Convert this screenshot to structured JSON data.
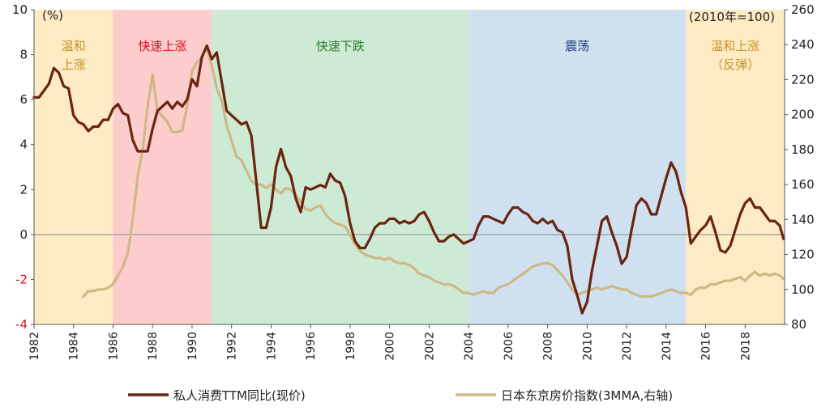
{
  "chart_data": {
    "type": "line",
    "left_unit": "(%)",
    "right_unit": "(2010年=100)",
    "x_range": [
      1982,
      2020
    ],
    "x_ticks": [
      1982,
      1984,
      1986,
      1988,
      1990,
      1992,
      1994,
      1996,
      1998,
      2000,
      2002,
      2004,
      2006,
      2008,
      2010,
      2012,
      2014,
      2016,
      2018
    ],
    "left_ylim": [
      -4,
      10
    ],
    "left_ticks": [
      -4,
      -2,
      0,
      2,
      4,
      6,
      8,
      10
    ],
    "right_ylim": [
      80,
      260
    ],
    "right_ticks": [
      80,
      100,
      120,
      140,
      160,
      180,
      200,
      220,
      240,
      260
    ],
    "regions": [
      {
        "label": "温和上涨",
        "lines": [
          "温和",
          "上涨"
        ],
        "start": 1982,
        "end": 1986,
        "fill": "#fdebc4",
        "text_color": "#c8922a"
      },
      {
        "label": "快速上涨",
        "lines": [
          "快速上涨"
        ],
        "start": 1986,
        "end": 1991,
        "fill": "#fdcccc",
        "text_color": "#d7141e"
      },
      {
        "label": "快速下跌",
        "lines": [
          "快速下跌"
        ],
        "start": 1991,
        "end": 2004,
        "fill": "#cdebd4",
        "text_color": "#2e7d32"
      },
      {
        "label": "震荡",
        "lines": [
          "震荡"
        ],
        "start": 2004,
        "end": 2015,
        "fill": "#cfe1f1",
        "text_color": "#1f3a7a"
      },
      {
        "label": "温和上涨（反弹）",
        "lines": [
          "温和上涨",
          "（反弹）"
        ],
        "start": 2015,
        "end": 2020,
        "fill": "#fdebc4",
        "text_color": "#c8922a"
      }
    ],
    "series": [
      {
        "name": "私人消费TTM同比(现价)",
        "axis": "left",
        "color": "#6b2410",
        "x": [
          1982.0,
          1982.25,
          1982.5,
          1982.75,
          1983.0,
          1983.25,
          1983.5,
          1983.75,
          1984.0,
          1984.25,
          1984.5,
          1984.75,
          1985.0,
          1985.25,
          1985.5,
          1985.75,
          1986.0,
          1986.25,
          1986.5,
          1986.75,
          1987.0,
          1987.25,
          1987.5,
          1987.75,
          1988.0,
          1988.25,
          1988.5,
          1988.75,
          1989.0,
          1989.25,
          1989.5,
          1989.75,
          1990.0,
          1990.25,
          1990.5,
          1990.75,
          1991.0,
          1991.25,
          1991.5,
          1991.75,
          1992.0,
          1992.25,
          1992.5,
          1992.75,
          1993.0,
          1993.25,
          1993.5,
          1993.75,
          1994.0,
          1994.25,
          1994.5,
          1994.75,
          1995.0,
          1995.25,
          1995.5,
          1995.75,
          1996.0,
          1996.25,
          1996.5,
          1996.75,
          1997.0,
          1997.25,
          1997.5,
          1997.75,
          1998.0,
          1998.25,
          1998.5,
          1998.75,
          1999.0,
          1999.25,
          1999.5,
          1999.75,
          2000.0,
          2000.25,
          2000.5,
          2000.75,
          2001.0,
          2001.25,
          2001.5,
          2001.75,
          2002.0,
          2002.25,
          2002.5,
          2002.75,
          2003.0,
          2003.25,
          2003.5,
          2003.75,
          2004.0,
          2004.25,
          2004.5,
          2004.75,
          2005.0,
          2005.25,
          2005.5,
          2005.75,
          2006.0,
          2006.25,
          2006.5,
          2006.75,
          2007.0,
          2007.25,
          2007.5,
          2007.75,
          2008.0,
          2008.25,
          2008.5,
          2008.75,
          2009.0,
          2009.25,
          2009.5,
          2009.75,
          2010.0,
          2010.25,
          2010.5,
          2010.75,
          2011.0,
          2011.25,
          2011.5,
          2011.75,
          2012.0,
          2012.25,
          2012.5,
          2012.75,
          2013.0,
          2013.25,
          2013.5,
          2013.75,
          2014.0,
          2014.25,
          2014.5,
          2014.75,
          2015.0,
          2015.25,
          2015.5,
          2015.75,
          2016.0,
          2016.25,
          2016.5,
          2016.75,
          2017.0,
          2017.25,
          2017.5,
          2017.75,
          2018.0,
          2018.25,
          2018.5,
          2018.75,
          2019.0,
          2019.25,
          2019.5,
          2019.75,
          2019.95
        ],
        "values": [
          6.1,
          6.1,
          6.4,
          6.7,
          7.4,
          7.2,
          6.6,
          6.5,
          5.3,
          5.0,
          4.9,
          4.6,
          4.8,
          4.8,
          5.1,
          5.1,
          5.6,
          5.8,
          5.4,
          5.3,
          4.2,
          3.7,
          3.7,
          3.7,
          4.7,
          5.5,
          5.7,
          5.9,
          5.6,
          5.9,
          5.7,
          6.0,
          6.9,
          6.6,
          7.9,
          8.4,
          7.8,
          8.1,
          6.8,
          5.5,
          5.3,
          5.1,
          4.9,
          5.0,
          4.4,
          2.4,
          0.3,
          0.3,
          1.2,
          3.0,
          3.8,
          3.0,
          2.6,
          1.6,
          1.0,
          2.1,
          2.0,
          2.1,
          2.2,
          2.1,
          2.7,
          2.4,
          2.3,
          1.7,
          0.5,
          -0.3,
          -0.6,
          -0.6,
          -0.2,
          0.3,
          0.5,
          0.5,
          0.7,
          0.7,
          0.5,
          0.6,
          0.5,
          0.6,
          0.9,
          1.0,
          0.6,
          0.1,
          -0.3,
          -0.3,
          -0.1,
          0.0,
          -0.2,
          -0.4,
          -0.3,
          -0.2,
          0.4,
          0.8,
          0.8,
          0.7,
          0.6,
          0.5,
          0.9,
          1.2,
          1.2,
          1.0,
          0.9,
          0.6,
          0.5,
          0.7,
          0.5,
          0.6,
          0.2,
          0.1,
          -0.5,
          -2.0,
          -2.7,
          -3.5,
          -3.0,
          -1.6,
          -0.5,
          0.6,
          0.8,
          0.1,
          -0.5,
          -1.3,
          -1.0,
          0.2,
          1.3,
          1.6,
          1.4,
          0.9,
          0.9,
          1.7,
          2.5,
          3.2,
          2.8,
          1.9,
          1.2,
          -0.4,
          -0.1,
          0.2,
          0.4,
          0.8,
          0.1,
          -0.7,
          -0.8,
          -0.5,
          0.2,
          0.9,
          1.4,
          1.6,
          1.2,
          1.2,
          0.9,
          0.6,
          0.6,
          0.4,
          -0.2
        ]
      },
      {
        "name": "日本东京房价指数(3MMA,右轴)",
        "axis": "right",
        "color": "#cfb887",
        "x": [
          1984.5,
          1984.75,
          1985.0,
          1985.25,
          1985.5,
          1985.75,
          1986.0,
          1986.25,
          1986.5,
          1986.75,
          1987.0,
          1987.25,
          1987.5,
          1987.75,
          1988.0,
          1988.25,
          1988.5,
          1988.75,
          1989.0,
          1989.25,
          1989.5,
          1989.75,
          1990.0,
          1990.25,
          1990.5,
          1990.75,
          1991.0,
          1991.25,
          1991.5,
          1991.75,
          1992.0,
          1992.25,
          1992.5,
          1992.75,
          1993.0,
          1993.25,
          1993.5,
          1993.75,
          1994.0,
          1994.25,
          1994.5,
          1994.75,
          1995.0,
          1995.25,
          1995.5,
          1995.75,
          1996.0,
          1996.25,
          1996.5,
          1996.75,
          1997.0,
          1997.25,
          1997.5,
          1997.75,
          1998.0,
          1998.25,
          1998.5,
          1998.75,
          1999.0,
          1999.25,
          1999.5,
          1999.75,
          2000.0,
          2000.25,
          2000.5,
          2000.75,
          2001.0,
          2001.25,
          2001.5,
          2001.75,
          2002.0,
          2002.25,
          2002.5,
          2002.75,
          2003.0,
          2003.25,
          2003.5,
          2003.75,
          2004.0,
          2004.25,
          2004.5,
          2004.75,
          2005.0,
          2005.25,
          2005.5,
          2005.75,
          2006.0,
          2006.25,
          2006.5,
          2006.75,
          2007.0,
          2007.25,
          2007.5,
          2007.75,
          2008.0,
          2008.25,
          2008.5,
          2008.75,
          2009.0,
          2009.25,
          2009.5,
          2009.75,
          2010.0,
          2010.25,
          2010.5,
          2010.75,
          2011.0,
          2011.25,
          2011.5,
          2011.75,
          2012.0,
          2012.25,
          2012.5,
          2012.75,
          2013.0,
          2013.25,
          2013.5,
          2013.75,
          2014.0,
          2014.25,
          2014.5,
          2014.75,
          2015.0,
          2015.25,
          2015.5,
          2015.75,
          2016.0,
          2016.25,
          2016.5,
          2016.75,
          2017.0,
          2017.25,
          2017.5,
          2017.75,
          2018.0,
          2018.25,
          2018.5,
          2018.75,
          2019.0,
          2019.25,
          2019.5,
          2019.75,
          2019.95
        ],
        "values": [
          96,
          99,
          99,
          100,
          100,
          101,
          103,
          108,
          113,
          121,
          140,
          165,
          180,
          205,
          223,
          202,
          199,
          196,
          190,
          190,
          191,
          205,
          225,
          230,
          233,
          238,
          228,
          215,
          208,
          194,
          185,
          176,
          174,
          168,
          162,
          160,
          160,
          158,
          160,
          157,
          155,
          158,
          157,
          154,
          150,
          146,
          145,
          147,
          148,
          143,
          140,
          138,
          137,
          136,
          131,
          126,
          122,
          120,
          119,
          118,
          118,
          117,
          118,
          116,
          115,
          115,
          114,
          112,
          109,
          108,
          107,
          105,
          104,
          103,
          103,
          102,
          100,
          98,
          98,
          97,
          98,
          99,
          98,
          98,
          101,
          102,
          103,
          105,
          107,
          109,
          111,
          113,
          114,
          115,
          115,
          114,
          111,
          108,
          104,
          100,
          97,
          98,
          99,
          100,
          101,
          100,
          101,
          102,
          101,
          100,
          100,
          98,
          97,
          96,
          96,
          96,
          97,
          98,
          99,
          100,
          99,
          98,
          98,
          97,
          100,
          101,
          101,
          103,
          103,
          104,
          105,
          105,
          106,
          107,
          105,
          108,
          110,
          108,
          109,
          108,
          109,
          108,
          106
        ]
      }
    ],
    "legend": [
      {
        "label": "私人消费TTM同比(现价)",
        "color": "#6b2410"
      },
      {
        "label": "日本东京房价指数(3MMA,右轴)",
        "color": "#cfb887"
      }
    ]
  }
}
